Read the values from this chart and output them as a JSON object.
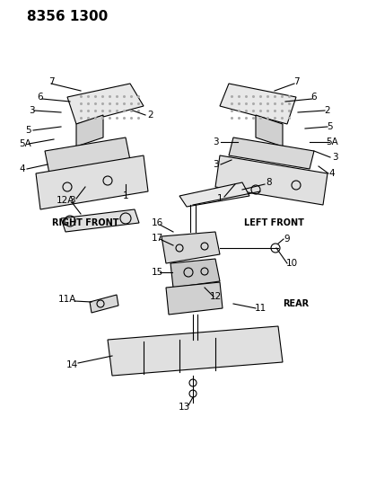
{
  "title": "8356 1300",
  "bg_color": "#ffffff",
  "line_color": "#000000",
  "label_color": "#000000",
  "title_fontsize": 11,
  "label_fontsize": 7.5,
  "caption_fontsize": 7,
  "right_front_label": "RIGHT FRONT",
  "left_front_label": "LEFT FRONT",
  "rear_label": "REAR"
}
